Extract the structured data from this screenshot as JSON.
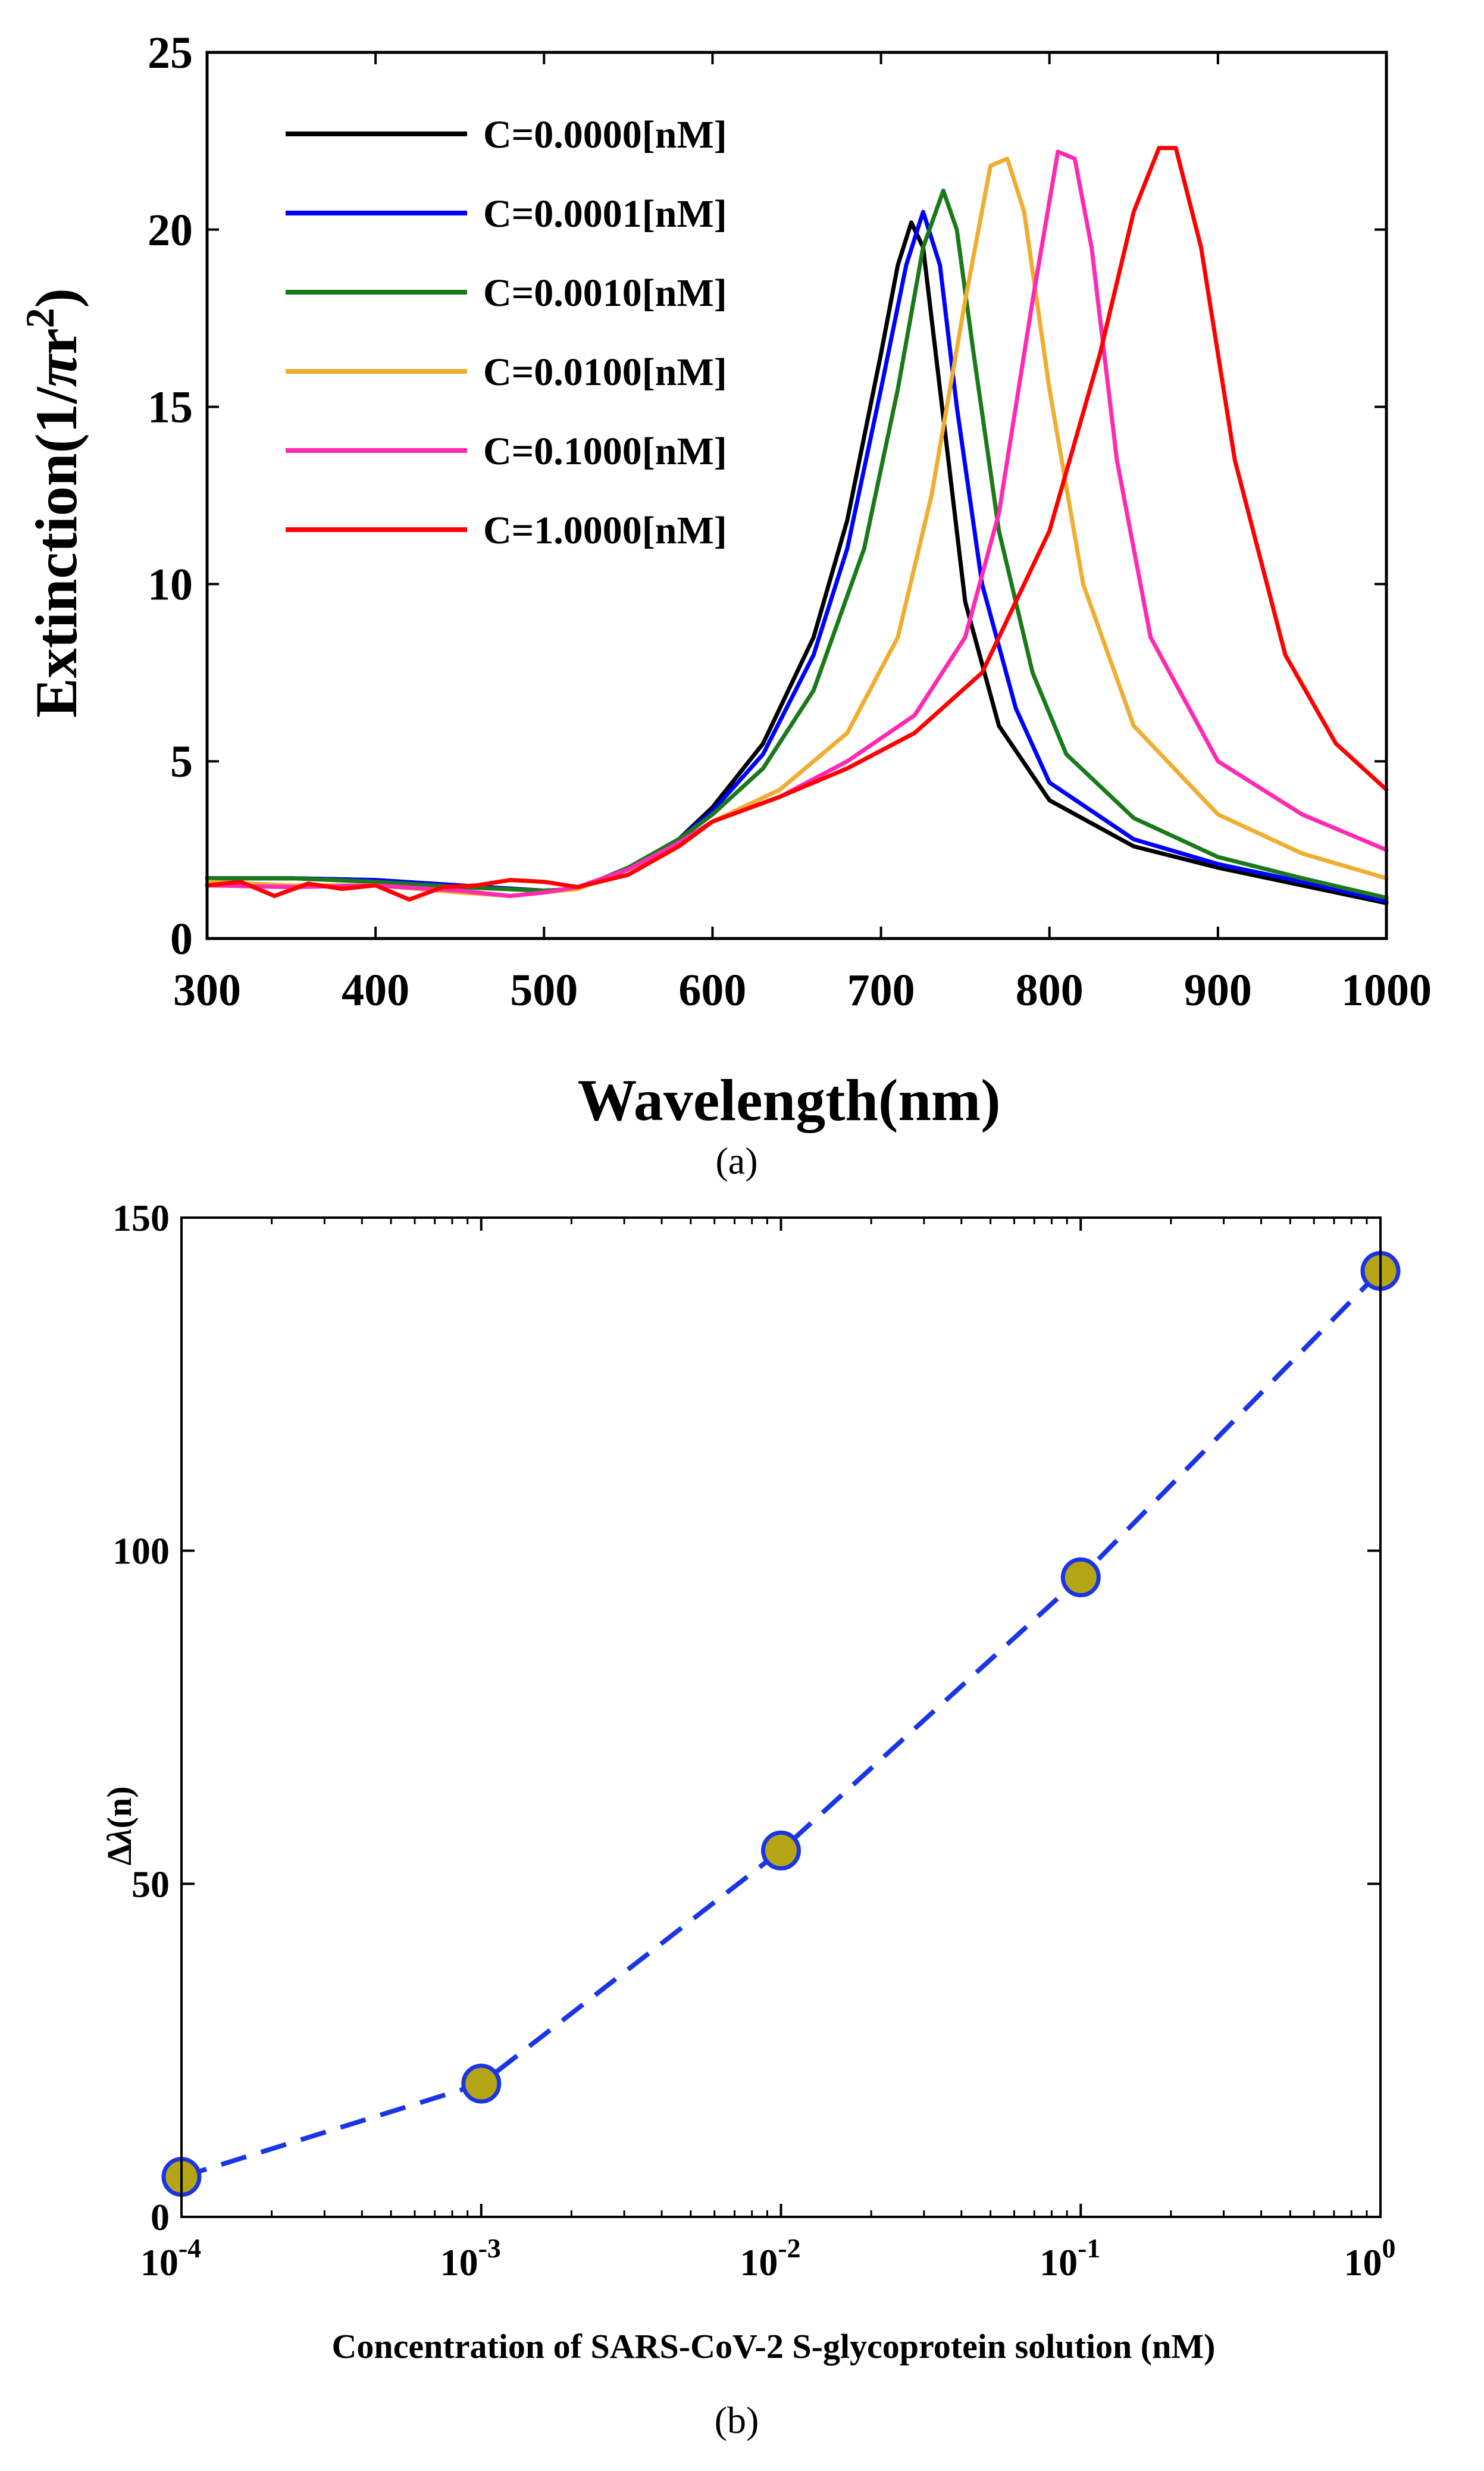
{
  "chart_data": [
    {
      "type": "line",
      "panel_label": "(a)",
      "xlabel": "Wavelength(nm)",
      "ylabel_parts": {
        "prefix": "Extinction(1/",
        "pi": "π",
        "r": "r",
        "exponent": "2",
        "suffix": ")"
      },
      "xlim": [
        300,
        1000
      ],
      "ylim": [
        0,
        25
      ],
      "xticks": [
        300,
        400,
        500,
        600,
        700,
        800,
        900,
        1000
      ],
      "yticks": [
        0,
        5,
        10,
        15,
        20,
        25
      ],
      "grid": false,
      "legend_position": "top-left",
      "series": [
        {
          "name": "C=0.0000[nM]",
          "color": "#000000",
          "x": [
            300,
            350,
            400,
            450,
            500,
            520,
            550,
            580,
            600,
            630,
            660,
            680,
            700,
            710,
            718,
            725,
            735,
            750,
            770,
            800,
            850,
            900,
            950,
            1000
          ],
          "y": [
            1.7,
            1.7,
            1.65,
            1.5,
            1.35,
            1.4,
            2.0,
            2.8,
            3.7,
            5.5,
            8.5,
            11.8,
            16.5,
            19.0,
            20.2,
            19.5,
            15.5,
            9.5,
            6.0,
            3.9,
            2.6,
            2.0,
            1.5,
            1.0
          ]
        },
        {
          "name": "C=0.0001[nM]",
          "color": "#0000ff",
          "x": [
            300,
            350,
            400,
            450,
            500,
            520,
            550,
            580,
            600,
            630,
            660,
            680,
            700,
            715,
            725,
            735,
            745,
            760,
            780,
            800,
            850,
            900,
            950,
            1000
          ],
          "y": [
            1.7,
            1.7,
            1.65,
            1.5,
            1.35,
            1.4,
            2.0,
            2.8,
            3.6,
            5.2,
            8.0,
            11.0,
            15.5,
            19.0,
            20.5,
            19.0,
            15.0,
            10.0,
            6.5,
            4.4,
            2.8,
            2.1,
            1.6,
            1.05
          ]
        },
        {
          "name": "C=0.0010[nM]",
          "color": "#1a7a1a",
          "x": [
            300,
            350,
            400,
            450,
            500,
            520,
            550,
            580,
            600,
            630,
            660,
            690,
            710,
            725,
            737,
            745,
            755,
            770,
            790,
            810,
            850,
            900,
            950,
            1000
          ],
          "y": [
            1.7,
            1.7,
            1.6,
            1.45,
            1.35,
            1.4,
            2.0,
            2.8,
            3.5,
            4.8,
            7.0,
            11.0,
            15.5,
            19.5,
            21.1,
            20.0,
            16.5,
            11.5,
            7.5,
            5.2,
            3.4,
            2.3,
            1.7,
            1.15
          ]
        },
        {
          "name": "C=0.0100[nM]",
          "color": "#f0ad30",
          "x": [
            300,
            350,
            400,
            450,
            480,
            500,
            520,
            550,
            580,
            600,
            640,
            680,
            710,
            730,
            750,
            765,
            775,
            785,
            800,
            820,
            850,
            900,
            950,
            1000
          ],
          "y": [
            1.6,
            1.5,
            1.5,
            1.3,
            1.2,
            1.3,
            1.4,
            1.95,
            2.7,
            3.3,
            4.2,
            5.8,
            8.5,
            12.5,
            18.0,
            21.8,
            22.0,
            20.5,
            15.5,
            10.0,
            6.0,
            3.5,
            2.4,
            1.7
          ]
        },
        {
          "name": "C=0.1000[nM]",
          "color": "#ff2ab2",
          "x": [
            300,
            350,
            400,
            450,
            480,
            500,
            520,
            550,
            580,
            600,
            640,
            680,
            720,
            750,
            770,
            790,
            805,
            815,
            825,
            840,
            860,
            900,
            950,
            1000
          ],
          "y": [
            1.5,
            1.45,
            1.5,
            1.35,
            1.2,
            1.3,
            1.45,
            1.95,
            2.7,
            3.3,
            4.0,
            5.0,
            6.3,
            8.5,
            12.0,
            18.0,
            22.2,
            22.0,
            19.5,
            13.5,
            8.5,
            5.0,
            3.5,
            2.5
          ]
        },
        {
          "name": "C=1.0000[nM]",
          "color": "#ff0000",
          "x": [
            300,
            320,
            340,
            360,
            380,
            400,
            420,
            440,
            460,
            480,
            500,
            520,
            550,
            580,
            600,
            640,
            680,
            720,
            760,
            800,
            830,
            850,
            865,
            875,
            890,
            910,
            940,
            970,
            1000
          ],
          "y": [
            1.5,
            1.6,
            1.2,
            1.55,
            1.4,
            1.5,
            1.1,
            1.45,
            1.5,
            1.65,
            1.6,
            1.45,
            1.8,
            2.6,
            3.3,
            4.0,
            4.8,
            5.8,
            7.5,
            11.5,
            16.5,
            20.5,
            22.3,
            22.3,
            19.5,
            13.5,
            8.0,
            5.5,
            4.2
          ]
        }
      ]
    },
    {
      "type": "scatter",
      "panel_label": "(b)",
      "xlabel": "Concentration of SARS-CoV-2 S-glycoprotein solution (nM)",
      "ylabel_parts": {
        "delta": "Δ",
        "lambda": "λ",
        "unit": "(n)"
      },
      "xscale": "log",
      "xlim": [
        0.0001,
        1
      ],
      "ylim": [
        0,
        150
      ],
      "xticks": [
        {
          "value": 0.0001,
          "base": "10",
          "exponent": "-4"
        },
        {
          "value": 0.001,
          "base": "10",
          "exponent": "-3"
        },
        {
          "value": 0.01,
          "base": "10",
          "exponent": "-2"
        },
        {
          "value": 0.1,
          "base": "10",
          "exponent": "-1"
        },
        {
          "value": 1,
          "base": "10",
          "exponent": "0"
        }
      ],
      "yticks": [
        0,
        50,
        100,
        150
      ],
      "grid": false,
      "series": [
        {
          "name": "Δλ",
          "line_color": "#1a35e6",
          "line_style": "dashed",
          "marker_fill": "#b5a514",
          "marker_edge": "#1a35e6",
          "x": [
            0.0001,
            0.001,
            0.01,
            0.1,
            1
          ],
          "y": [
            6,
            20,
            55,
            96,
            142
          ]
        }
      ]
    }
  ]
}
